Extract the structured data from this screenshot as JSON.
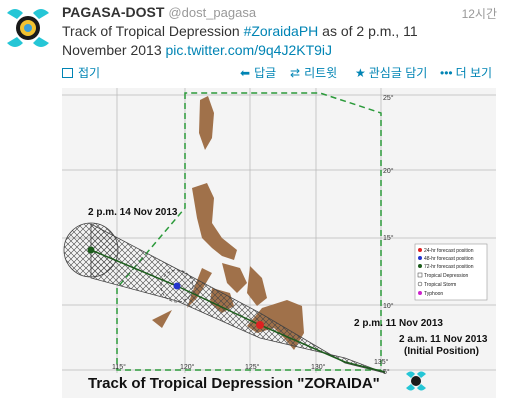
{
  "tweet": {
    "user_name": "PAGASA-DOST",
    "handle": "@dost_pagasa",
    "time": "12시간",
    "text_before": "Track of Tropical Depression",
    "hashtag": "#ZoraidaPH",
    "text_after": "as of 2 p.m., 11 November 2013",
    "link": "pic.twitter.com/9q4J2KT9iJ",
    "actions": {
      "collapse": "접기",
      "reply": "답글",
      "retweet": "리트윗",
      "favorite": "관심글 담기",
      "more": "더 보기"
    }
  },
  "map": {
    "title": "Track of  Tropical Depression \"ZORAIDA\"",
    "latitudes": [
      "25°",
      "20°",
      "15°",
      "10°",
      "5°"
    ],
    "longitudes": [
      "115°",
      "120°",
      "125°",
      "130°",
      "135°"
    ],
    "labels": [
      "2 p.m. 14 Nov 2013",
      "2 p.m. 11 Nov 2013",
      "2 a.m. 11 Nov 2013",
      "(Initial Position)"
    ],
    "legend": [
      "24-hr forecast position",
      "48-hr forecast position",
      "72-hr forecast position",
      "Tropical Depression",
      "Tropical Storm",
      "Typhoon"
    ]
  }
}
